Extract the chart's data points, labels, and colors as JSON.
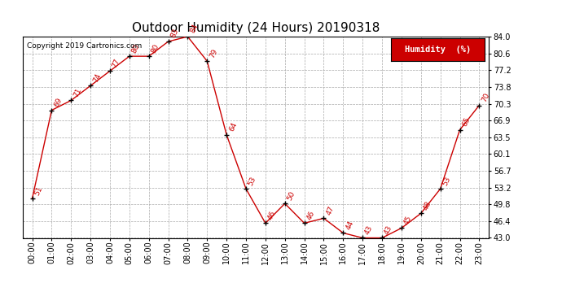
{
  "title": "Outdoor Humidity (24 Hours) 20190318",
  "copyright": "Copyright 2019 Cartronics.com",
  "legend_label": "Humidity  (%)",
  "x_labels": [
    "00:00",
    "01:00",
    "02:00",
    "03:00",
    "04:00",
    "05:00",
    "06:00",
    "07:00",
    "08:00",
    "09:00",
    "10:00",
    "11:00",
    "12:00",
    "13:00",
    "14:00",
    "15:00",
    "16:00",
    "17:00",
    "18:00",
    "19:00",
    "20:00",
    "21:00",
    "22:00",
    "23:00"
  ],
  "humidity": [
    51,
    69,
    71,
    74,
    77,
    80,
    80,
    83,
    84,
    79,
    64,
    53,
    46,
    50,
    46,
    47,
    44,
    43,
    43,
    45,
    48,
    53,
    65,
    70
  ],
  "ylim_min": 43.0,
  "ylim_max": 84.0,
  "yticks": [
    43.0,
    46.4,
    49.8,
    53.2,
    56.7,
    60.1,
    63.5,
    66.9,
    70.3,
    73.8,
    77.2,
    80.6,
    84.0
  ],
  "line_color": "#cc0000",
  "marker_color": "#000000",
  "label_color": "#cc0000",
  "bg_color": "#ffffff",
  "grid_color": "#aaaaaa",
  "title_fontsize": 11,
  "label_fontsize": 6.5,
  "tick_fontsize": 7,
  "copyright_fontsize": 6.5,
  "legend_fontsize": 7.5
}
